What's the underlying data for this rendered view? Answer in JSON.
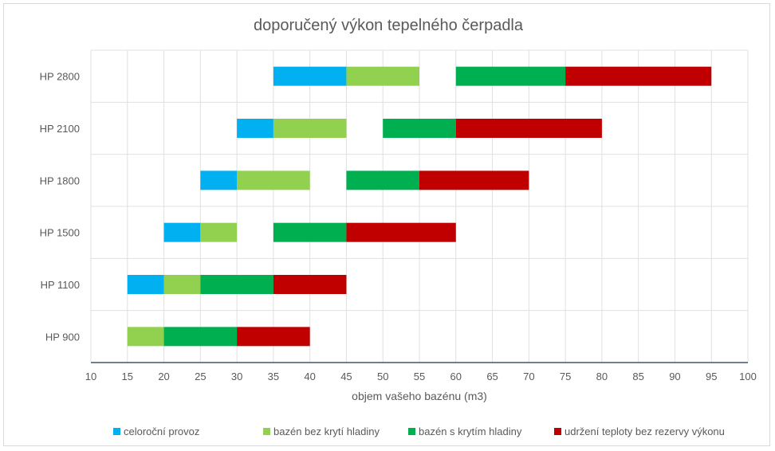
{
  "chart_data": {
    "type": "bar",
    "orientation": "horizontal-floating-stacked",
    "title": "doporučený výkon tepelného čerpadla",
    "xlabel": "objem vašeho bazénu (m3)",
    "ylabel": "",
    "xlim": [
      10,
      100
    ],
    "xticks": [
      10,
      15,
      20,
      25,
      30,
      35,
      40,
      45,
      50,
      55,
      60,
      65,
      70,
      75,
      80,
      85,
      90,
      95,
      100
    ],
    "grid": true,
    "legend_position": "bottom",
    "series": [
      {
        "name": "celoroční provoz",
        "color": "#00b0f0"
      },
      {
        "name": "bazén bez krytí hladiny",
        "color": "#92d050"
      },
      {
        "name": "bazén s krytím hladiny",
        "color": "#00b050"
      },
      {
        "name": "udržení teploty bez rezervy výkonu",
        "color": "#c00000"
      }
    ],
    "categories": [
      "HP 2800",
      "HP 2100",
      "HP 1800",
      "HP 1500",
      "HP 1100",
      "HP 900"
    ],
    "rows": [
      {
        "label": "HP 2800",
        "segments": [
          [
            35,
            45,
            0
          ],
          [
            45,
            55,
            1
          ],
          [
            60,
            75,
            2
          ],
          [
            75,
            95,
            3
          ]
        ]
      },
      {
        "label": "HP 2100",
        "segments": [
          [
            30,
            35,
            0
          ],
          [
            35,
            45,
            1
          ],
          [
            50,
            60,
            2
          ],
          [
            60,
            80,
            3
          ]
        ]
      },
      {
        "label": "HP 1800",
        "segments": [
          [
            25,
            30,
            0
          ],
          [
            30,
            40,
            1
          ],
          [
            45,
            55,
            2
          ],
          [
            55,
            70,
            3
          ]
        ]
      },
      {
        "label": "HP 1500",
        "segments": [
          [
            20,
            25,
            0
          ],
          [
            25,
            30,
            1
          ],
          [
            35,
            45,
            2
          ],
          [
            45,
            60,
            3
          ]
        ]
      },
      {
        "label": "HP 1100",
        "segments": [
          [
            15,
            20,
            0
          ],
          [
            20,
            25,
            1
          ],
          [
            25,
            35,
            2
          ],
          [
            35,
            45,
            3
          ]
        ]
      },
      {
        "label": "HP 900",
        "segments": [
          [
            15,
            20,
            1
          ],
          [
            20,
            30,
            2
          ],
          [
            30,
            40,
            3
          ]
        ]
      }
    ]
  }
}
